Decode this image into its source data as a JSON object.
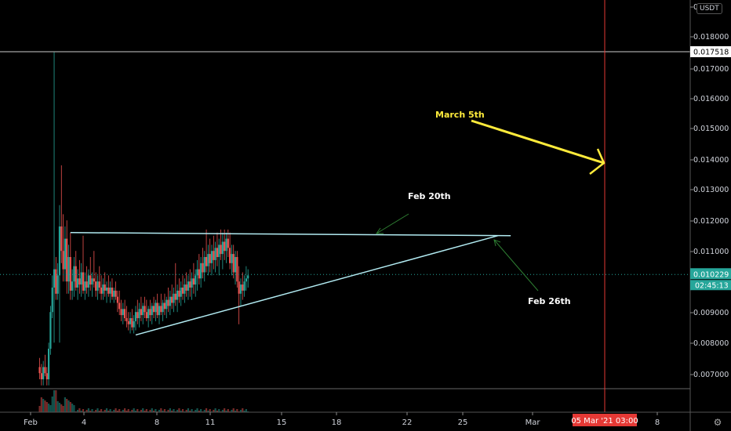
{
  "chart_data": {
    "type": "candlestick",
    "symbol_currency": "USDT",
    "x_tick_labels": [
      "Feb",
      "4",
      "8",
      "11",
      "15",
      "18",
      "22",
      "25",
      "Mar",
      "8"
    ],
    "y_tick_labels": [
      "0",
      "0.018000",
      "0.017000",
      "0.016000",
      "0.015000",
      "0.014000",
      "0.013000",
      "0.012000",
      "0.011000",
      "0.009000",
      "0.008000",
      "0.007000"
    ],
    "ylim": [
      0.0064,
      0.019
    ],
    "levels": {
      "high_line": {
        "value": 0.017518,
        "label": "0.017518"
      },
      "last_price": {
        "value": 0.010229,
        "label": "0.010229"
      },
      "countdown": "02:45:13"
    },
    "vertical_marker": {
      "label": "05 Mar '21  03:00"
    },
    "annotations": [
      {
        "text": "March 5th",
        "color": "#ffeb3b"
      },
      {
        "text": "Feb 20th",
        "color": "#ffffff"
      },
      {
        "text": "Feb 26th",
        "color": "#ffffff"
      }
    ],
    "trendlines": {
      "resistance_start": [
        3.2,
        0.0116
      ],
      "resistance_end": [
        27.5,
        0.0115
      ],
      "support_start": [
        6.8,
        0.00825
      ],
      "support_end": [
        26.8,
        0.0115
      ]
    },
    "candles": [
      [
        1.5,
        0.0072,
        0.0075,
        0.0068,
        0.007
      ],
      [
        1.6,
        0.007,
        0.0073,
        0.0066,
        0.0068
      ],
      [
        1.7,
        0.0068,
        0.0074,
        0.0066,
        0.0072
      ],
      [
        1.8,
        0.0072,
        0.0076,
        0.0069,
        0.007
      ],
      [
        1.9,
        0.007,
        0.0072,
        0.0066,
        0.0068
      ],
      [
        2.0,
        0.0068,
        0.008,
        0.0066,
        0.0078
      ],
      [
        2.1,
        0.0078,
        0.0092,
        0.0076,
        0.009
      ],
      [
        2.2,
        0.009,
        0.0102,
        0.0088,
        0.0098
      ],
      [
        2.3,
        0.0098,
        0.0175,
        0.008,
        0.0104
      ],
      [
        2.4,
        0.0104,
        0.0108,
        0.0094,
        0.0096
      ],
      [
        2.5,
        0.0096,
        0.0106,
        0.0094,
        0.0102
      ],
      [
        2.6,
        0.0102,
        0.0125,
        0.008,
        0.0118
      ],
      [
        2.7,
        0.0118,
        0.0138,
        0.0106,
        0.011
      ],
      [
        2.8,
        0.011,
        0.0122,
        0.01,
        0.0104
      ],
      [
        2.9,
        0.0104,
        0.0118,
        0.01,
        0.0114
      ],
      [
        3.0,
        0.0114,
        0.012,
        0.0096,
        0.01
      ],
      [
        3.1,
        0.01,
        0.0112,
        0.0096,
        0.0108
      ],
      [
        3.2,
        0.0108,
        0.0116,
        0.0094,
        0.0097
      ],
      [
        3.3,
        0.0097,
        0.0104,
        0.0094,
        0.01
      ],
      [
        3.4,
        0.01,
        0.0108,
        0.0095,
        0.0105
      ],
      [
        3.5,
        0.0105,
        0.011,
        0.0097,
        0.0098
      ],
      [
        3.6,
        0.0098,
        0.0104,
        0.0094,
        0.0101
      ],
      [
        3.7,
        0.0101,
        0.0107,
        0.0096,
        0.0099
      ],
      [
        3.8,
        0.0099,
        0.0106,
        0.0095,
        0.0103
      ],
      [
        3.9,
        0.0103,
        0.0115,
        0.0096,
        0.0097
      ],
      [
        4.0,
        0.0097,
        0.0103,
        0.0094,
        0.01
      ],
      [
        4.1,
        0.01,
        0.0105,
        0.0096,
        0.0098
      ],
      [
        4.2,
        0.0098,
        0.0104,
        0.0095,
        0.0102
      ],
      [
        4.3,
        0.0102,
        0.0108,
        0.0097,
        0.0099
      ],
      [
        4.4,
        0.0099,
        0.0103,
        0.0095,
        0.0101
      ],
      [
        4.5,
        0.0101,
        0.011,
        0.0098,
        0.01
      ],
      [
        4.6,
        0.01,
        0.0103,
        0.0095,
        0.0097
      ],
      [
        4.7,
        0.0097,
        0.0102,
        0.0094,
        0.01
      ],
      [
        4.8,
        0.01,
        0.0105,
        0.0096,
        0.0098
      ],
      [
        4.9,
        0.0098,
        0.0102,
        0.0094,
        0.0096
      ],
      [
        5.0,
        0.0096,
        0.0101,
        0.0094,
        0.0099
      ],
      [
        5.1,
        0.0099,
        0.0103,
        0.0095,
        0.0097
      ],
      [
        5.2,
        0.0097,
        0.01,
        0.0093,
        0.0098
      ],
      [
        5.3,
        0.0098,
        0.0102,
        0.0095,
        0.0096
      ],
      [
        5.4,
        0.0096,
        0.01,
        0.0093,
        0.0098
      ],
      [
        5.5,
        0.0098,
        0.0101,
        0.0094,
        0.0095
      ],
      [
        5.6,
        0.0095,
        0.0098,
        0.0093,
        0.0097
      ],
      [
        5.7,
        0.0097,
        0.01,
        0.0094,
        0.0095
      ],
      [
        5.8,
        0.0095,
        0.0097,
        0.009,
        0.0093
      ],
      [
        5.9,
        0.0093,
        0.0097,
        0.0089,
        0.0091
      ],
      [
        6.0,
        0.0091,
        0.0094,
        0.0087,
        0.0089
      ],
      [
        6.1,
        0.0089,
        0.0093,
        0.0086,
        0.0091
      ],
      [
        6.2,
        0.0091,
        0.0094,
        0.0087,
        0.0088
      ],
      [
        6.3,
        0.0088,
        0.0092,
        0.0085,
        0.0087
      ],
      [
        6.4,
        0.0087,
        0.009,
        0.0084,
        0.0086
      ],
      [
        6.5,
        0.0086,
        0.009,
        0.0083,
        0.0088
      ],
      [
        6.6,
        0.0088,
        0.0091,
        0.0084,
        0.0085
      ],
      [
        6.7,
        0.0085,
        0.0089,
        0.0083,
        0.0087
      ],
      [
        6.8,
        0.0087,
        0.0092,
        0.0084,
        0.009
      ],
      [
        6.9,
        0.009,
        0.0094,
        0.0086,
        0.0088
      ],
      [
        7.0,
        0.0088,
        0.0093,
        0.0085,
        0.0091
      ],
      [
        7.1,
        0.0091,
        0.0095,
        0.0087,
        0.0089
      ],
      [
        7.2,
        0.0089,
        0.0093,
        0.0086,
        0.0092
      ],
      [
        7.3,
        0.0092,
        0.0095,
        0.0088,
        0.009
      ],
      [
        7.4,
        0.009,
        0.0094,
        0.0087,
        0.0088
      ],
      [
        7.5,
        0.0088,
        0.0092,
        0.0085,
        0.0091
      ],
      [
        7.6,
        0.0091,
        0.0094,
        0.0087,
        0.0089
      ],
      [
        7.7,
        0.0089,
        0.0093,
        0.0086,
        0.0092
      ],
      [
        7.8,
        0.0092,
        0.0095,
        0.0088,
        0.009
      ],
      [
        7.9,
        0.009,
        0.0094,
        0.0087,
        0.0093
      ],
      [
        8.0,
        0.0093,
        0.0096,
        0.0088,
        0.0089
      ],
      [
        8.1,
        0.0089,
        0.0093,
        0.0086,
        0.0092
      ],
      [
        8.2,
        0.0092,
        0.0096,
        0.0089,
        0.009
      ],
      [
        8.3,
        0.009,
        0.0094,
        0.0087,
        0.0093
      ],
      [
        8.4,
        0.0093,
        0.0096,
        0.0089,
        0.0091
      ],
      [
        8.5,
        0.0091,
        0.0095,
        0.0088,
        0.0094
      ],
      [
        8.6,
        0.0094,
        0.0098,
        0.009,
        0.0092
      ],
      [
        8.7,
        0.0092,
        0.0097,
        0.0089,
        0.0095
      ],
      [
        8.8,
        0.0095,
        0.0099,
        0.0091,
        0.0093
      ],
      [
        8.9,
        0.0093,
        0.0098,
        0.009,
        0.0096
      ],
      [
        9.0,
        0.0096,
        0.0106,
        0.0092,
        0.0094
      ],
      [
        9.1,
        0.0094,
        0.0099,
        0.009,
        0.0097
      ],
      [
        9.2,
        0.0097,
        0.0101,
        0.0093,
        0.0095
      ],
      [
        9.3,
        0.0095,
        0.01,
        0.0092,
        0.0098
      ],
      [
        9.4,
        0.0098,
        0.0102,
        0.0094,
        0.0096
      ],
      [
        9.5,
        0.0096,
        0.0101,
        0.0093,
        0.0099
      ],
      [
        9.6,
        0.0099,
        0.0103,
        0.0095,
        0.0097
      ],
      [
        9.7,
        0.0097,
        0.0102,
        0.0094,
        0.01
      ],
      [
        9.8,
        0.01,
        0.0104,
        0.0095,
        0.0098
      ],
      [
        9.9,
        0.0098,
        0.0103,
        0.0094,
        0.0101
      ],
      [
        10.0,
        0.0101,
        0.0106,
        0.0096,
        0.0099
      ],
      [
        10.1,
        0.0099,
        0.0104,
        0.0095,
        0.0102
      ],
      [
        10.2,
        0.0102,
        0.0107,
        0.0097,
        0.0104
      ],
      [
        10.3,
        0.0104,
        0.0109,
        0.0099,
        0.0101
      ],
      [
        10.4,
        0.0101,
        0.0108,
        0.0098,
        0.0106
      ],
      [
        10.5,
        0.0106,
        0.0111,
        0.0101,
        0.0103
      ],
      [
        10.6,
        0.0103,
        0.011,
        0.01,
        0.0108
      ],
      [
        10.7,
        0.0108,
        0.0117,
        0.0103,
        0.0105
      ],
      [
        10.8,
        0.0105,
        0.0112,
        0.0102,
        0.0109
      ],
      [
        10.9,
        0.0109,
        0.0114,
        0.0103,
        0.0106
      ],
      [
        11.0,
        0.0106,
        0.0112,
        0.0102,
        0.011
      ],
      [
        11.1,
        0.011,
        0.0115,
        0.0104,
        0.0107
      ],
      [
        11.2,
        0.0107,
        0.0113,
        0.0103,
        0.0111
      ],
      [
        11.3,
        0.0111,
        0.0116,
        0.0105,
        0.0108
      ],
      [
        11.4,
        0.0108,
        0.0114,
        0.0102,
        0.0112
      ],
      [
        11.5,
        0.0112,
        0.0117,
        0.0107,
        0.0109
      ],
      [
        11.6,
        0.0109,
        0.0116,
        0.0104,
        0.0113
      ],
      [
        11.7,
        0.0113,
        0.0117,
        0.0107,
        0.011
      ],
      [
        11.8,
        0.011,
        0.0116,
        0.0106,
        0.0114
      ],
      [
        11.9,
        0.0114,
        0.0117,
        0.0108,
        0.0111
      ],
      [
        12.0,
        0.0111,
        0.0116,
        0.0104,
        0.0106
      ],
      [
        12.1,
        0.0106,
        0.0112,
        0.0102,
        0.0109
      ],
      [
        12.2,
        0.0109,
        0.0112,
        0.0101,
        0.0103
      ],
      [
        12.3,
        0.0103,
        0.011,
        0.0099,
        0.0108
      ],
      [
        12.4,
        0.0108,
        0.011,
        0.0098,
        0.01
      ],
      [
        12.5,
        0.01,
        0.0105,
        0.0086,
        0.0096
      ],
      [
        12.6,
        0.0096,
        0.0101,
        0.0092,
        0.0099
      ],
      [
        12.7,
        0.0099,
        0.0103,
        0.0094,
        0.0097
      ],
      [
        12.8,
        0.0097,
        0.0102,
        0.0095,
        0.01
      ],
      [
        12.9,
        0.01,
        0.0105,
        0.0097,
        0.0101
      ],
      [
        13.0,
        0.0101,
        0.0104,
        0.0098,
        0.0102
      ]
    ]
  }
}
